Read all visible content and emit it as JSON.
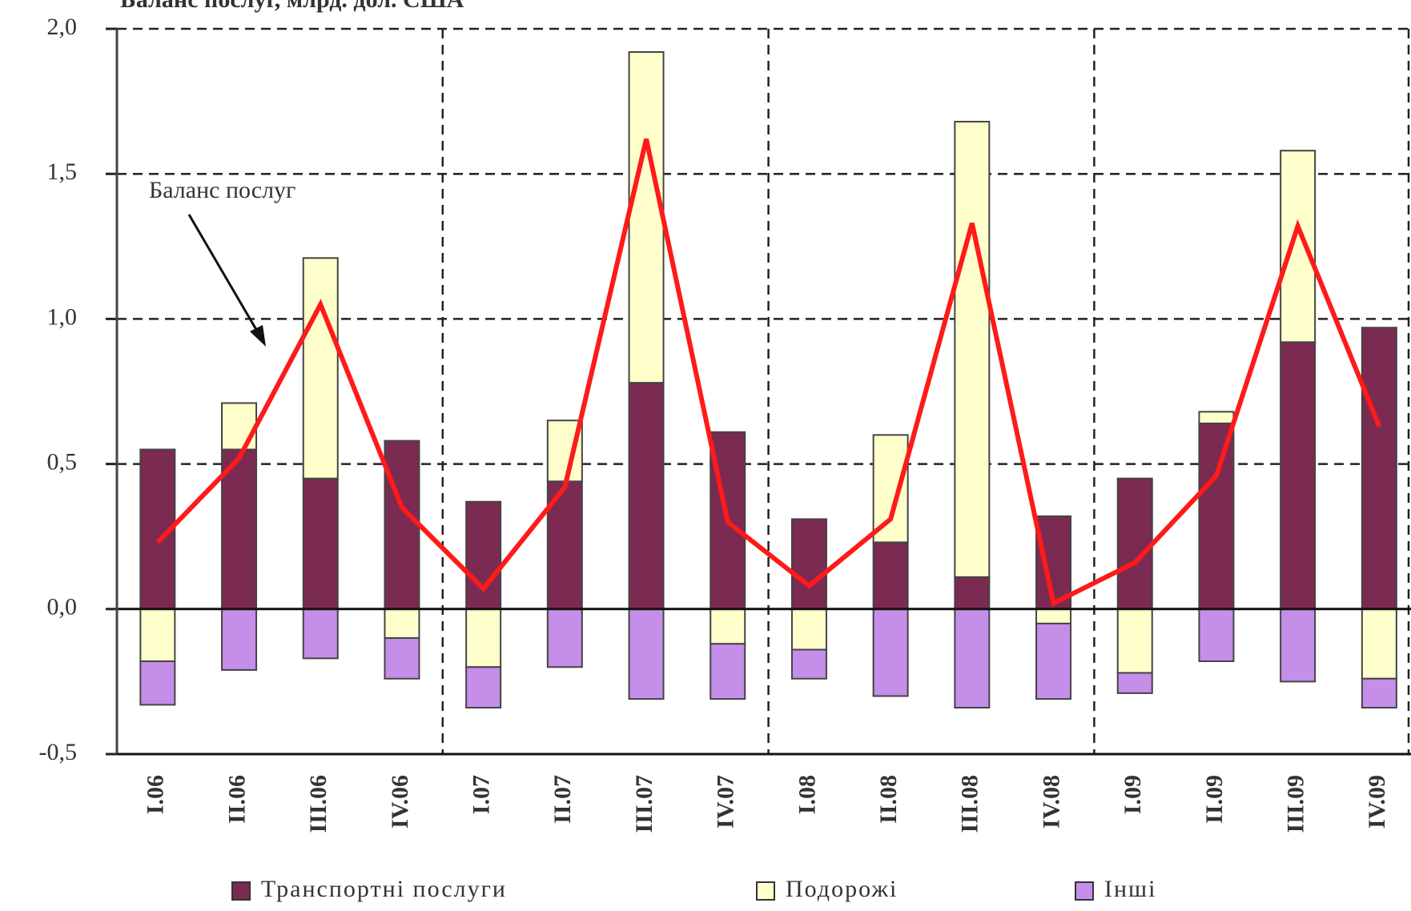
{
  "chart_data": {
    "type": "bar",
    "stacked": true,
    "title": "Баланс послуг, млрд. дол. США",
    "categories": [
      "I.06",
      "II.06",
      "III.06",
      "IV.06",
      "I.07",
      "II.07",
      "III.07",
      "IV.07",
      "I.08",
      "II.08",
      "III.08",
      "IV.08",
      "I.09",
      "II.09",
      "III.09",
      "IV.09"
    ],
    "series": [
      {
        "name": "Транспортні послуги",
        "color": "#7b2a52",
        "values": [
          0.55,
          0.55,
          0.45,
          0.58,
          0.37,
          0.44,
          0.78,
          0.61,
          0.31,
          0.23,
          0.11,
          0.32,
          0.45,
          0.64,
          0.92,
          0.97
        ]
      },
      {
        "name": "Подорожі",
        "color": "#ffffcc",
        "values": [
          -0.18,
          0.16,
          0.76,
          -0.1,
          -0.2,
          0.21,
          1.14,
          -0.12,
          -0.14,
          0.37,
          1.57,
          -0.05,
          -0.22,
          0.04,
          0.66,
          -0.24
        ]
      },
      {
        "name": "Інші",
        "color": "#c58ee8",
        "values": [
          -0.15,
          -0.21,
          -0.17,
          -0.14,
          -0.14,
          -0.2,
          -0.31,
          -0.19,
          -0.1,
          -0.3,
          -0.34,
          -0.26,
          -0.07,
          -0.18,
          -0.25,
          -0.1
        ]
      },
      {
        "name": "Баланс послуг",
        "type": "line",
        "color": "#ff1a1a",
        "values": [
          0.23,
          0.52,
          1.05,
          0.35,
          0.07,
          0.42,
          1.62,
          0.3,
          0.08,
          0.31,
          1.33,
          0.02,
          0.16,
          0.46,
          1.32,
          0.63
        ]
      }
    ],
    "ylim": [
      -0.5,
      2.0
    ],
    "yticks": [
      {
        "value": -0.5,
        "label": "-0,5"
      },
      {
        "value": 0,
        "label": "0,0"
      },
      {
        "value": 0.5,
        "label": "0,5"
      },
      {
        "value": 1.0,
        "label": "1,0"
      },
      {
        "value": 1.5,
        "label": "1,5"
      },
      {
        "value": 2.0,
        "label": "2,0"
      }
    ],
    "grid": true,
    "legend": "bottom"
  }
}
